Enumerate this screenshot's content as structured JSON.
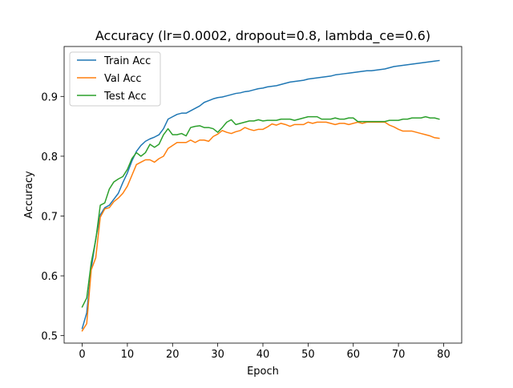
{
  "chart_data": {
    "type": "line",
    "title": "Accuracy (lr=0.0002, dropout=0.8, lambda_ce=0.6)",
    "xlabel": "Epoch",
    "ylabel": "Accuracy",
    "xlim": [
      -4,
      84
    ],
    "ylim": [
      0.4875,
      0.9835
    ],
    "xticks": [
      0,
      10,
      20,
      30,
      40,
      50,
      60,
      70,
      80
    ],
    "xtick_labels": [
      "0",
      "10",
      "20",
      "30",
      "40",
      "50",
      "60",
      "70",
      "80"
    ],
    "yticks": [
      0.5,
      0.6,
      0.7,
      0.8,
      0.9
    ],
    "ytick_labels": [
      "0.5",
      "0.6",
      "0.7",
      "0.8",
      "0.9"
    ],
    "grid": false,
    "legend_position": "top-left",
    "x": [
      0,
      1,
      2,
      3,
      4,
      5,
      6,
      7,
      8,
      9,
      10,
      11,
      12,
      13,
      14,
      15,
      16,
      17,
      18,
      19,
      20,
      21,
      22,
      23,
      24,
      25,
      26,
      27,
      28,
      29,
      30,
      31,
      32,
      33,
      34,
      35,
      36,
      37,
      38,
      39,
      40,
      41,
      42,
      43,
      44,
      45,
      46,
      47,
      48,
      49,
      50,
      51,
      52,
      53,
      54,
      55,
      56,
      57,
      58,
      59,
      60,
      61,
      62,
      63,
      64,
      65,
      66,
      67,
      68,
      69,
      70,
      71,
      72,
      73,
      74,
      75,
      76,
      77,
      78,
      79
    ],
    "series": [
      {
        "name": "Train Acc",
        "color": "#1f77b4",
        "values": [
          0.512,
          0.538,
          0.612,
          0.662,
          0.702,
          0.714,
          0.718,
          0.728,
          0.738,
          0.756,
          0.772,
          0.792,
          0.808,
          0.818,
          0.825,
          0.829,
          0.832,
          0.836,
          0.846,
          0.862,
          0.866,
          0.87,
          0.872,
          0.872,
          0.876,
          0.88,
          0.884,
          0.89,
          0.893,
          0.896,
          0.898,
          0.899,
          0.901,
          0.903,
          0.905,
          0.906,
          0.908,
          0.909,
          0.911,
          0.913,
          0.914,
          0.916,
          0.917,
          0.918,
          0.92,
          0.922,
          0.924,
          0.925,
          0.926,
          0.927,
          0.929,
          0.93,
          0.931,
          0.932,
          0.933,
          0.934,
          0.936,
          0.937,
          0.938,
          0.939,
          0.94,
          0.941,
          0.942,
          0.943,
          0.943,
          0.944,
          0.945,
          0.946,
          0.948,
          0.95,
          0.951,
          0.952,
          0.953,
          0.954,
          0.955,
          0.956,
          0.957,
          0.958,
          0.959,
          0.96
        ]
      },
      {
        "name": "Val Acc",
        "color": "#ff7f0e",
        "values": [
          0.508,
          0.52,
          0.61,
          0.63,
          0.698,
          0.712,
          0.714,
          0.724,
          0.73,
          0.738,
          0.75,
          0.768,
          0.786,
          0.79,
          0.794,
          0.794,
          0.79,
          0.796,
          0.8,
          0.813,
          0.818,
          0.823,
          0.823,
          0.823,
          0.827,
          0.823,
          0.827,
          0.827,
          0.825,
          0.833,
          0.837,
          0.843,
          0.84,
          0.838,
          0.841,
          0.843,
          0.848,
          0.845,
          0.843,
          0.845,
          0.845,
          0.849,
          0.854,
          0.852,
          0.855,
          0.853,
          0.85,
          0.853,
          0.853,
          0.853,
          0.857,
          0.855,
          0.857,
          0.857,
          0.857,
          0.855,
          0.853,
          0.855,
          0.855,
          0.853,
          0.855,
          0.857,
          0.855,
          0.857,
          0.857,
          0.857,
          0.857,
          0.857,
          0.852,
          0.849,
          0.845,
          0.842,
          0.842,
          0.842,
          0.84,
          0.838,
          0.836,
          0.834,
          0.831,
          0.83
        ]
      },
      {
        "name": "Test Acc",
        "color": "#2ca02c",
        "values": [
          0.548,
          0.563,
          0.622,
          0.66,
          0.718,
          0.722,
          0.745,
          0.757,
          0.762,
          0.766,
          0.778,
          0.796,
          0.806,
          0.8,
          0.806,
          0.82,
          0.815,
          0.82,
          0.836,
          0.846,
          0.836,
          0.836,
          0.838,
          0.834,
          0.848,
          0.85,
          0.851,
          0.848,
          0.848,
          0.846,
          0.84,
          0.848,
          0.857,
          0.861,
          0.853,
          0.855,
          0.857,
          0.859,
          0.859,
          0.861,
          0.859,
          0.86,
          0.86,
          0.86,
          0.862,
          0.862,
          0.862,
          0.86,
          0.862,
          0.864,
          0.866,
          0.866,
          0.866,
          0.862,
          0.862,
          0.862,
          0.864,
          0.862,
          0.862,
          0.864,
          0.864,
          0.858,
          0.858,
          0.858,
          0.858,
          0.858,
          0.858,
          0.858,
          0.86,
          0.86,
          0.86,
          0.862,
          0.862,
          0.864,
          0.864,
          0.864,
          0.866,
          0.864,
          0.864,
          0.862
        ]
      }
    ]
  }
}
